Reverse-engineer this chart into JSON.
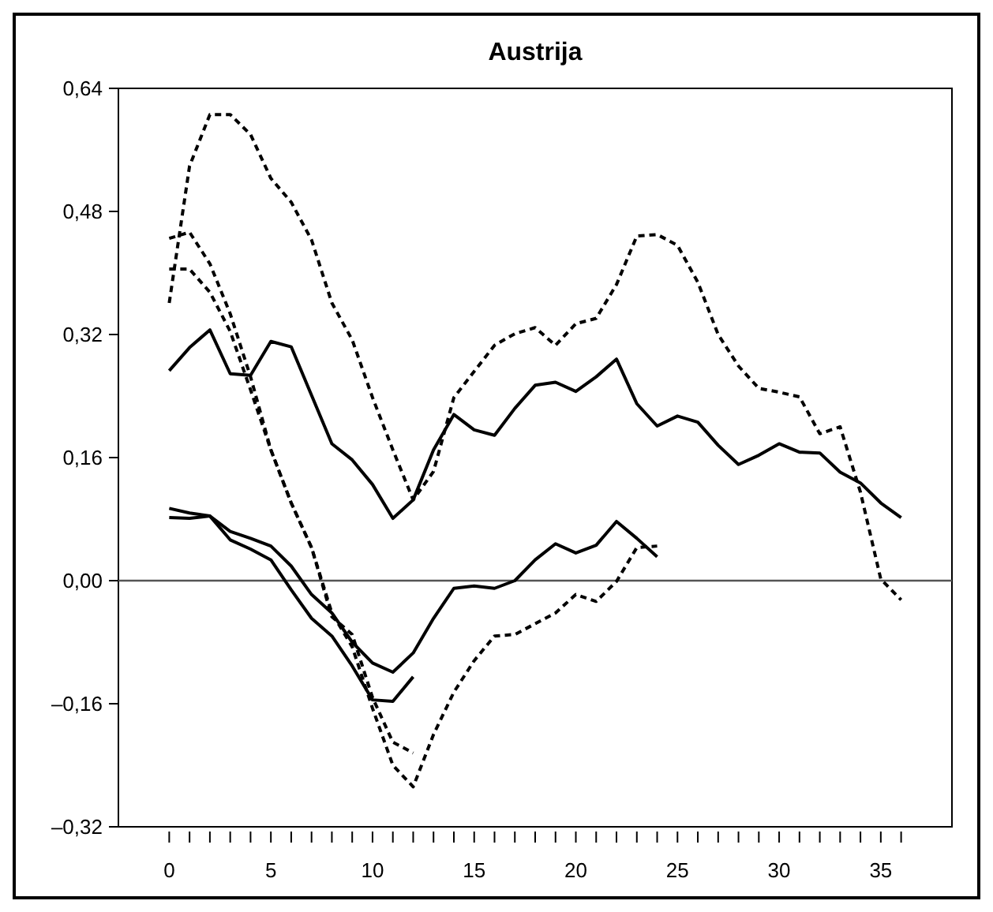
{
  "chart_data": {
    "type": "line",
    "title": "Austrija",
    "xlim": [
      -2.5,
      38.5
    ],
    "xticks": [
      0,
      {
        "value": 1,
        "label": null
      },
      {
        "value": 2,
        "label": null
      },
      {
        "value": 3,
        "label": null
      },
      {
        "value": 4,
        "label": null
      },
      5,
      {
        "value": 6,
        "label": null
      },
      {
        "value": 7,
        "label": null
      },
      {
        "value": 8,
        "label": null
      },
      {
        "value": 9,
        "label": null
      },
      10,
      {
        "value": 11,
        "label": null
      },
      {
        "value": 12,
        "label": null
      },
      {
        "value": 13,
        "label": null
      },
      {
        "value": 14,
        "label": null
      },
      15,
      {
        "value": 16,
        "label": null
      },
      {
        "value": 17,
        "label": null
      },
      {
        "value": 18,
        "label": null
      },
      {
        "value": 19,
        "label": null
      },
      20,
      {
        "value": 21,
        "label": null
      },
      {
        "value": 22,
        "label": null
      },
      {
        "value": 23,
        "label": null
      },
      {
        "value": 24,
        "label": null
      },
      25,
      {
        "value": 26,
        "label": null
      },
      {
        "value": 27,
        "label": null
      },
      {
        "value": 28,
        "label": null
      },
      {
        "value": 29,
        "label": null
      },
      30,
      {
        "value": 31,
        "label": null
      },
      {
        "value": 32,
        "label": null
      },
      {
        "value": 33,
        "label": null
      },
      {
        "value": 34,
        "label": null
      },
      35,
      {
        "value": 36,
        "label": null
      }
    ],
    "ylim": [
      -0.32,
      0.64
    ],
    "yticks": [
      {
        "value": -0.32,
        "label": "–0,32"
      },
      {
        "value": -0.16,
        "label": "–0,16"
      },
      {
        "value": 0,
        "label": "0,00"
      },
      {
        "value": 0.16,
        "label": "0,16"
      },
      {
        "value": 0.32,
        "label": "0,32"
      },
      {
        "value": 0.48,
        "label": "0,48"
      },
      {
        "value": 0.64,
        "label": "0,64"
      }
    ],
    "grid": false,
    "marker": "none",
    "ref_lines": [
      {
        "axis": "y",
        "value": 0,
        "color": "#555555"
      }
    ],
    "series": [
      {
        "color": "#000000",
        "line_style": "solid",
        "x": [
          0,
          1,
          2,
          3,
          4,
          5,
          6,
          7,
          8,
          9,
          10,
          11,
          12,
          13,
          14,
          15,
          16,
          17,
          18,
          19,
          20,
          21,
          22,
          23,
          24,
          25,
          26,
          27,
          28,
          29,
          30,
          31,
          32,
          33,
          34,
          35,
          36
        ],
        "values": [
          0.273,
          0.303,
          0.326,
          0.269,
          0.267,
          0.311,
          0.304,
          0.241,
          0.178,
          0.157,
          0.125,
          0.081,
          0.105,
          0.17,
          0.216,
          0.196,
          0.189,
          0.224,
          0.254,
          0.258,
          0.246,
          0.265,
          0.288,
          0.23,
          0.201,
          0.214,
          0.206,
          0.176,
          0.151,
          0.163,
          0.178,
          0.167,
          0.166,
          0.141,
          0.127,
          0.101,
          0.082
        ]
      },
      {
        "color": "#000000",
        "line_style": "solid",
        "x": [
          0,
          1,
          2,
          3,
          4,
          5,
          6,
          7,
          8,
          9,
          10,
          11,
          12,
          13,
          14,
          15,
          16,
          17,
          18,
          19,
          20,
          21,
          22,
          23,
          24
        ],
        "values": [
          0.094,
          0.088,
          0.084,
          0.064,
          0.055,
          0.045,
          0.019,
          -0.018,
          -0.042,
          -0.08,
          -0.107,
          -0.119,
          -0.094,
          -0.049,
          -0.01,
          -0.007,
          -0.01,
          0.0,
          0.027,
          0.048,
          0.036,
          0.046,
          0.077,
          0.055,
          0.031
        ]
      },
      {
        "color": "#000000",
        "line_style": "solid",
        "x": [
          0,
          1,
          2,
          3,
          4,
          5,
          6,
          7,
          8,
          9,
          10,
          11,
          12
        ],
        "values": [
          0.082,
          0.081,
          0.084,
          0.053,
          0.041,
          0.027,
          -0.012,
          -0.049,
          -0.072,
          -0.111,
          -0.155,
          -0.157,
          -0.125
        ]
      },
      {
        "color": "#000000",
        "line_style": "dashed",
        "x": [
          0,
          1,
          2,
          3,
          4,
          5,
          6,
          7,
          8,
          9,
          10,
          11,
          12,
          13,
          14,
          15,
          16,
          17,
          18,
          19,
          20,
          21,
          22,
          23,
          24,
          25,
          26,
          27,
          28,
          29,
          30,
          31,
          32,
          33,
          34,
          35,
          36
        ],
        "values": [
          0.361,
          0.539,
          0.606,
          0.606,
          0.58,
          0.523,
          0.492,
          0.443,
          0.361,
          0.313,
          0.238,
          0.17,
          0.105,
          0.142,
          0.238,
          0.272,
          0.306,
          0.321,
          0.329,
          0.306,
          0.334,
          0.341,
          0.385,
          0.448,
          0.45,
          0.436,
          0.388,
          0.32,
          0.279,
          0.25,
          0.245,
          0.239,
          0.191,
          0.2,
          0.115,
          0.002,
          -0.025
        ]
      },
      {
        "color": "#000000",
        "line_style": "dashed",
        "x": [
          0,
          1,
          2,
          3,
          4,
          5,
          6,
          7,
          8,
          9,
          10,
          11,
          12,
          13,
          14,
          15,
          16,
          17,
          18,
          19,
          20,
          21,
          22,
          23,
          24
        ],
        "values": [
          0.445,
          0.453,
          0.412,
          0.347,
          0.265,
          0.17,
          0.101,
          0.043,
          -0.042,
          -0.086,
          -0.166,
          -0.24,
          -0.268,
          -0.2,
          -0.145,
          -0.104,
          -0.072,
          -0.07,
          -0.056,
          -0.042,
          -0.018,
          -0.027,
          -0.001,
          0.043,
          0.045
        ]
      },
      {
        "color": "#000000",
        "line_style": "dashed",
        "x": [
          0,
          1,
          2,
          3,
          4,
          5,
          6,
          7,
          8,
          9,
          10,
          11,
          12
        ],
        "values": [
          0.405,
          0.405,
          0.375,
          0.324,
          0.248,
          0.17,
          0.101,
          0.043,
          -0.047,
          -0.07,
          -0.152,
          -0.21,
          -0.224
        ]
      }
    ]
  }
}
